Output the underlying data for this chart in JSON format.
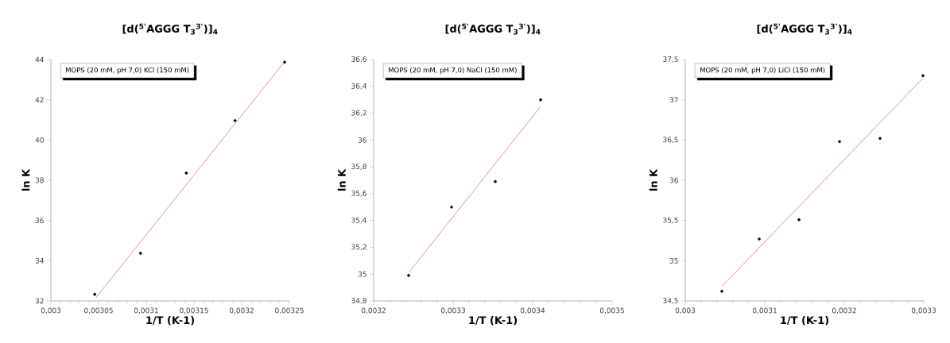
{
  "chart_data": [
    {
      "type": "scatter",
      "title": "[d($^{5'}$AGGG T$_{3}$$^{3'}$)]$_{4}$",
      "xlabel": "1/T (K-1)",
      "ylabel": "ln K",
      "annotations": [
        "MOPS (20 mM, pH 7,0) KCl (150 mM)"
      ],
      "xlim": [
        0.003,
        0.00325
      ],
      "ylim": [
        32,
        44
      ],
      "xticks": [
        {
          "value": 0.003,
          "label": "0,003"
        },
        {
          "value": 0.00305,
          "label": "0,00305"
        },
        {
          "value": 0.0031,
          "label": "0,0031"
        },
        {
          "value": 0.00315,
          "label": "0,00315"
        },
        {
          "value": 0.0032,
          "label": "0,0032"
        },
        {
          "value": 0.00325,
          "label": "0,00325"
        }
      ],
      "yticks": [
        32,
        34,
        36,
        38,
        40,
        42,
        44
      ],
      "series": [
        {
          "color": "#000000",
          "x": [
            0.003046,
            0.003094,
            0.003142,
            0.003193,
            0.003245
          ],
          "values": [
            32.33,
            34.37,
            38.36,
            40.97,
            43.87
          ]
        },
        {
          "type": "line",
          "color": "#e07070",
          "x": [
            0.003047,
            0.003245
          ],
          "values": [
            32.15,
            43.9
          ]
        }
      ]
    },
    {
      "type": "scatter",
      "title": "[d($^{5'}$AGGG T$_{3}$$^{3'}$)]$_{4}$",
      "xlabel": "1/T (K-1)",
      "ylabel": "ln K",
      "annotations": [
        "MOPS (20 mM, pH 7,0) NaCl (150 mM)"
      ],
      "xlim": [
        0.0032,
        0.0035
      ],
      "ylim": [
        34.8,
        36.6
      ],
      "xticks": [
        {
          "value": 0.0032,
          "label": "0,0032"
        },
        {
          "value": 0.0033,
          "label": "0,0033"
        },
        {
          "value": 0.0034,
          "label": "0,0034"
        },
        {
          "value": 0.0035,
          "label": "0,0035"
        }
      ],
      "yticks": [
        {
          "value": 34.8,
          "label": "34,8"
        },
        35,
        {
          "value": 35.2,
          "label": "35,2"
        },
        {
          "value": 35.4,
          "label": "35,4"
        },
        {
          "value": 35.6,
          "label": "35,6"
        },
        {
          "value": 35.8,
          "label": "35,8"
        },
        36,
        {
          "value": 36.2,
          "label": "36,2"
        },
        {
          "value": 36.4,
          "label": "36,4"
        },
        {
          "value": 36.6,
          "label": "36,6"
        }
      ],
      "series": [
        {
          "color": "#000000",
          "x": [
            0.003244,
            0.003298,
            0.003353,
            0.00341
          ],
          "values": [
            34.99,
            35.5,
            35.69,
            36.3
          ]
        },
        {
          "type": "line",
          "color": "#e07070",
          "x": [
            0.003244,
            0.00341
          ],
          "values": [
            35.01,
            36.25
          ]
        }
      ]
    },
    {
      "type": "scatter",
      "title": "[d($^{5'}$AGGG T$_{3}$$^{3'}$)]$_{4}$",
      "xlabel": "1/T (K-1)",
      "ylabel": "ln K",
      "annotations": [
        "MOPS (20 mM, pH 7,0) LiCl (150 mM)"
      ],
      "xlim": [
        0.003,
        0.0033
      ],
      "ylim": [
        34.5,
        37.5
      ],
      "xticks": [
        {
          "value": 0.003,
          "label": "0,003"
        },
        {
          "value": 0.0031,
          "label": "0,0031"
        },
        {
          "value": 0.0032,
          "label": "0,0032"
        },
        {
          "value": 0.0033,
          "label": "0,0033"
        }
      ],
      "yticks": [
        {
          "value": 34.5,
          "label": "34,5"
        },
        35,
        {
          "value": 35.5,
          "label": "35,5"
        },
        36,
        {
          "value": 36.5,
          "label": "36,5"
        },
        37,
        {
          "value": 37.5,
          "label": "37,5"
        }
      ],
      "series": [
        {
          "color": "#000000",
          "x": [
            0.003046,
            0.003093,
            0.003143,
            0.003194,
            0.003245,
            0.003299
          ],
          "values": [
            34.62,
            35.27,
            35.51,
            36.48,
            36.52,
            37.3
          ]
        },
        {
          "type": "line",
          "color": "#e07070",
          "x": [
            0.003046,
            0.003299
          ],
          "values": [
            34.68,
            37.27
          ]
        }
      ]
    }
  ]
}
